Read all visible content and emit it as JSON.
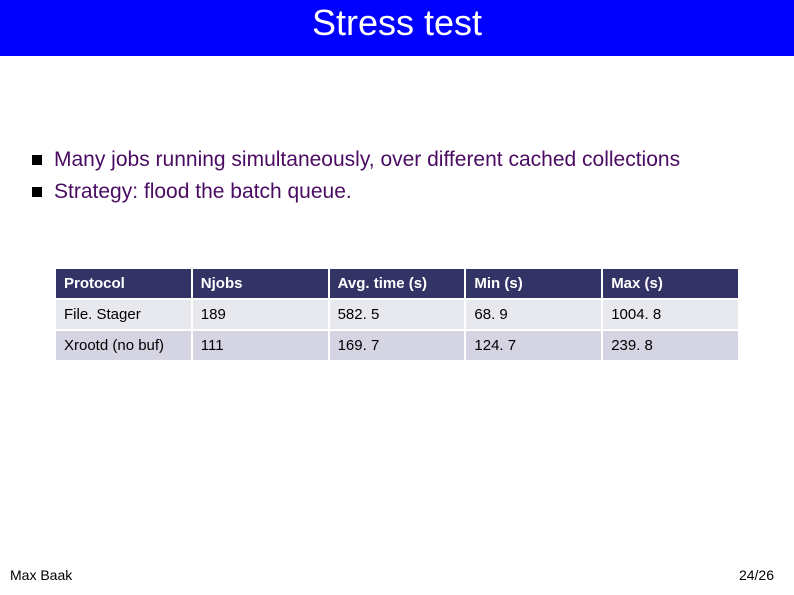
{
  "title": "Stress test",
  "title_bar": {
    "background_color": "#0000ff",
    "text_color": "#ffffff",
    "font_size_pt": 28
  },
  "bullets": {
    "text_color": "#4b0b63",
    "marker_color": "#000000",
    "font_size_pt": 16,
    "items": [
      "Many jobs running simultaneously, over different cached collections",
      "Strategy: flood the batch queue."
    ]
  },
  "table": {
    "type": "table",
    "header_bg": "#333366",
    "header_fg": "#ffffff",
    "row_bg": [
      "#e8e8ef",
      "#d4d4e2"
    ],
    "border_color": "#ffffff",
    "font_size_pt": 11,
    "columns": [
      "Protocol",
      "Njobs",
      "Avg. time (s)",
      "Min (s)",
      "Max (s)"
    ],
    "rows": [
      [
        "File. Stager",
        "189",
        "582. 5",
        "68. 9",
        "1004. 8"
      ],
      [
        "Xrootd (no buf)",
        "111",
        "169. 7",
        "124. 7",
        "239. 8"
      ]
    ]
  },
  "footer": {
    "author": "Max Baak",
    "page": "24/26",
    "font_size_pt": 11
  }
}
